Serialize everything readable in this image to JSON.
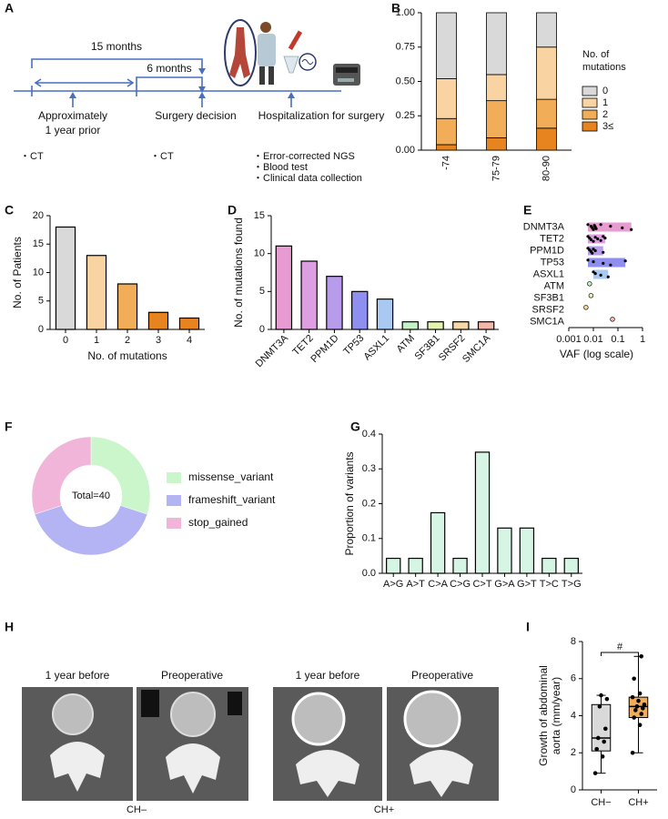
{
  "panel_a": {
    "label": "A",
    "durations": [
      "15 months",
      "6 months"
    ],
    "events": [
      {
        "lines": [
          "Approximately",
          "1 year prior"
        ],
        "items": [
          "・CT"
        ]
      },
      {
        "lines": [
          "Surgery decision"
        ],
        "items": [
          "・CT"
        ]
      },
      {
        "lines": [
          "Hospitalization for surgery"
        ],
        "items": [
          "・Error-corrected NGS",
          "・Blood test",
          "・Clinical data collection"
        ]
      }
    ]
  },
  "chart_data": [
    {
      "type": "stacked_bar",
      "label": "B",
      "categories": [
        "-74",
        "75-79",
        "80-90"
      ],
      "legend_title": [
        "No. of",
        "mutations"
      ],
      "series": [
        {
          "name": "0",
          "color": "#d9d9d9",
          "values": [
            0.48,
            0.45,
            0.25
          ]
        },
        {
          "name": "1",
          "color": "#f9d4a2",
          "values": [
            0.29,
            0.19,
            0.38
          ]
        },
        {
          "name": "2",
          "color": "#f1ad57",
          "values": [
            0.19,
            0.27,
            0.21
          ]
        },
        {
          "name": "3≤",
          "color": "#e7841f",
          "values": [
            0.04,
            0.09,
            0.16
          ]
        }
      ],
      "ylim": [
        0,
        1
      ],
      "yticks": [
        {
          "value": 0,
          "label": "0.00"
        },
        {
          "value": 0.25,
          "label": "0.25"
        },
        {
          "value": 0.5,
          "label": "0.50"
        },
        {
          "value": 0.75,
          "label": "0.75"
        },
        {
          "value": 1,
          "label": "1.00"
        }
      ]
    },
    {
      "type": "bar",
      "label": "C",
      "categories": [
        "0",
        "1",
        "2",
        "3",
        "4"
      ],
      "values": [
        18,
        13,
        8,
        3,
        2
      ],
      "colors": [
        "#d9d9d9",
        "#f9d4a2",
        "#f1ad57",
        "#e7841f",
        "#e7841f"
      ],
      "ylabel": "No. of Patients",
      "xlabel": "No. of mutations",
      "ylim": [
        0,
        20
      ],
      "yticks": [
        0,
        5,
        10,
        15,
        20
      ]
    },
    {
      "type": "bar",
      "label": "D",
      "categories": [
        "DNMT3A",
        "TET2",
        "PPM1D",
        "TP53",
        "ASXL1",
        "ATM",
        "SF3B1",
        "SRSF2",
        "SMC1A"
      ],
      "values": [
        11,
        9,
        7,
        5,
        4,
        1,
        1,
        1,
        1
      ],
      "colors": [
        "#e89bd2",
        "#dd9fe2",
        "#b89cec",
        "#8f8ff0",
        "#a9c9f3",
        "#c4f1c6",
        "#e3f3b2",
        "#f6d8a8",
        "#f4b6aa"
      ],
      "ylabel": "No. of mutations found",
      "ylim": [
        0,
        15
      ],
      "yticks": [
        0,
        5,
        10,
        15
      ]
    },
    {
      "type": "dot_range",
      "label": "E",
      "categories": [
        "DNMT3A",
        "TET2",
        "PPM1D",
        "TP53",
        "ASXL1",
        "ATM",
        "SF3B1",
        "SRSF2",
        "SMC1A"
      ],
      "colors": [
        "#e89bd2",
        "#dd9fe2",
        "#b89cec",
        "#8f8ff0",
        "#a9c9f3",
        "#c4f1c6",
        "#e3f3b2",
        "#f6d8a8",
        "#f4b6aa"
      ],
      "points": [
        [
          0.006,
          0.008,
          0.009,
          0.01,
          0.011,
          0.012,
          0.013,
          0.02,
          0.05,
          0.15,
          0.35
        ],
        [
          0.006,
          0.007,
          0.008,
          0.01,
          0.012,
          0.015,
          0.02,
          0.025,
          0.03
        ],
        [
          0.006,
          0.007,
          0.008,
          0.009,
          0.01,
          0.012,
          0.025
        ],
        [
          0.006,
          0.01,
          0.025,
          0.05,
          0.2
        ],
        [
          0.01,
          0.012,
          0.02,
          0.04
        ],
        [
          0.007
        ],
        [
          0.008
        ],
        [
          0.005
        ],
        [
          0.06
        ]
      ],
      "xlabel": "VAF (log scale)",
      "log_x": true,
      "xlim": [
        0.001,
        1
      ],
      "xticks": [
        0.001,
        0.01,
        0.1,
        1
      ]
    },
    {
      "type": "donut",
      "label": "F",
      "categories": [
        "missense_variant",
        "frameshift_variant",
        "stop_gained"
      ],
      "values": [
        12,
        16,
        12
      ],
      "colors": [
        "#cbf5cb",
        "#b4b4f4",
        "#f0b5d9"
      ],
      "center_label": "Total=40"
    },
    {
      "type": "bar",
      "label": "G",
      "categories": [
        "A>G",
        "A>T",
        "C>A",
        "C>G",
        "C>T",
        "G>A",
        "G>T",
        "T>C",
        "T>G"
      ],
      "values": [
        0.043,
        0.043,
        0.174,
        0.043,
        0.348,
        0.13,
        0.13,
        0.043,
        0.043
      ],
      "color": "#d7f5e4",
      "ylabel": "Proportion of variants",
      "ylim": [
        0,
        0.4
      ],
      "yticks": [
        {
          "value": 0,
          "label": "0.0"
        },
        0.1,
        0.2,
        0.3,
        0.4
      ]
    },
    {
      "type": "box",
      "label": "I",
      "categories": [
        "CH−",
        "CH+"
      ],
      "colors": [
        "#d9d9d9",
        "#f1ad57"
      ],
      "groups": [
        {
          "min": 0.9,
          "q1": 2.1,
          "median": 2.8,
          "q3": 4.6,
          "max": 5.1,
          "points": [
            0.9,
            1.8,
            2.2,
            2.6,
            2.8,
            3.3,
            4.5,
            4.9,
            5.1
          ]
        },
        {
          "min": 2.0,
          "q1": 3.9,
          "median": 4.5,
          "q3": 5.0,
          "max": 7.2,
          "points": [
            2.0,
            3.5,
            3.9,
            4.1,
            4.3,
            4.4,
            4.5,
            4.6,
            4.8,
            5.0,
            5.2,
            6.0,
            7.2
          ]
        }
      ],
      "annotation": "#",
      "ylabel": [
        "Growth of abdominal",
        "aorta (mm/year)"
      ],
      "ylim": [
        0,
        8
      ],
      "yticks": [
        0,
        2,
        4,
        6,
        8
      ]
    }
  ],
  "panel_h": {
    "label": "H",
    "groups": [
      {
        "name": "CH–",
        "images": [
          "1 year before",
          "Preoperative"
        ]
      },
      {
        "name": "CH+",
        "images": [
          "1 year before",
          "Preoperative"
        ]
      }
    ]
  }
}
